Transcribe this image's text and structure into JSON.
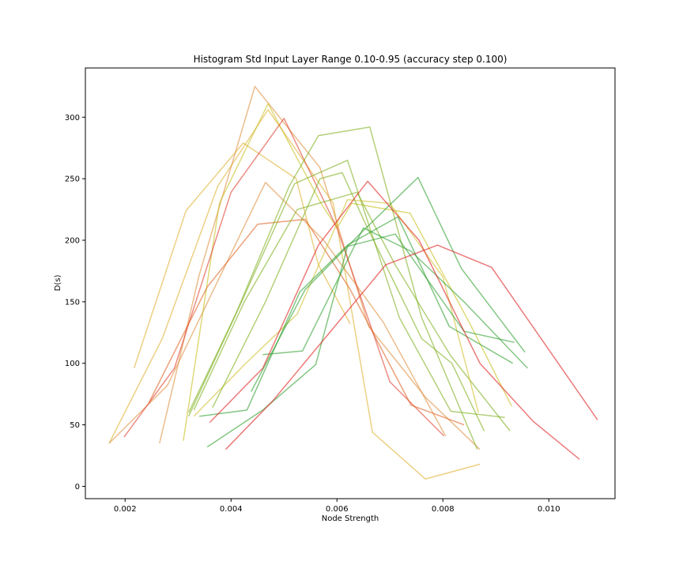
{
  "chart_data": {
    "type": "line",
    "title": "Histogram Std Input Layer Range 0.10-0.95 (accuracy step 0.100)",
    "xlabel": "Node Strength",
    "ylabel": "D(s)",
    "xlim": [
      0.00125,
      0.01125
    ],
    "ylim": [
      -10,
      340
    ],
    "xticks": [
      0.002,
      0.004,
      0.006,
      0.008,
      0.01
    ],
    "xtick_labels": [
      "0.002",
      "0.004",
      "0.006",
      "0.008",
      "0.010"
    ],
    "yticks": [
      0,
      50,
      100,
      150,
      200,
      250,
      300
    ],
    "ytick_labels": [
      "0",
      "50",
      "100",
      "150",
      "200",
      "250",
      "300"
    ],
    "grid": false,
    "line_alpha": 0.6,
    "series": [
      {
        "color": "#e0b030",
        "x": [
          0.00217,
          0.00315,
          0.00423,
          0.00523,
          0.00565,
          0.00625
        ],
        "y": [
          96,
          224,
          279,
          250,
          180,
          132
        ]
      },
      {
        "color": "#e0b030",
        "x": [
          0.0017,
          0.0027,
          0.00375,
          0.0047,
          0.00593,
          0.00667,
          0.00767,
          0.0087
        ],
        "y": [
          35,
          120,
          244,
          306,
          230,
          44,
          6,
          18
        ]
      },
      {
        "color": "#e09040",
        "x": [
          0.0017,
          0.0028,
          0.00365,
          0.00465,
          0.00575,
          0.00688,
          0.00805
        ],
        "y": [
          35,
          82,
          158,
          247,
          200,
          133,
          41
        ]
      },
      {
        "color": "#e09040",
        "x": [
          0.00265,
          0.0034,
          0.00445,
          0.00568,
          0.0066,
          0.00768,
          0.0087
        ],
        "y": [
          35,
          172,
          325,
          259,
          130,
          72,
          30
        ]
      },
      {
        "color": "#c8c020",
        "x": [
          0.0031,
          0.00378,
          0.0047,
          0.0057,
          0.006,
          0.00628,
          0.00738,
          0.0085,
          0.0093
        ],
        "y": [
          37,
          230,
          311,
          230,
          210,
          230,
          222,
          133,
          65
        ]
      },
      {
        "color": "#e04030",
        "x": [
          0.00198,
          0.00293,
          0.004,
          0.005,
          0.006,
          0.007,
          0.00802
        ],
        "y": [
          40,
          96,
          239,
          299,
          210,
          85,
          41
        ]
      },
      {
        "color": "#e06020",
        "x": [
          0.00245,
          0.00355,
          0.0045,
          0.0054,
          0.00625,
          0.0074,
          0.0084
        ],
        "y": [
          68,
          162,
          213,
          217,
          160,
          66,
          50
        ]
      },
      {
        "color": "#80b020",
        "x": [
          0.0032,
          0.00408,
          0.0051,
          0.00565,
          0.00662,
          0.0076,
          0.00865
        ],
        "y": [
          57,
          139,
          244,
          285,
          292,
          137,
          30
        ]
      },
      {
        "color": "#80b020",
        "x": [
          0.0032,
          0.0042,
          0.0052,
          0.0062,
          0.00718,
          0.00815,
          0.00917
        ],
        "y": [
          60,
          150,
          246,
          265,
          137,
          61,
          56
        ]
      },
      {
        "color": "#80b020",
        "x": [
          0.0033,
          0.00425,
          0.00525,
          0.00638,
          0.0071,
          0.00815,
          0.00927
        ],
        "y": [
          62,
          150,
          225,
          239,
          180,
          106,
          45
        ]
      },
      {
        "color": "#d0c030",
        "x": [
          0.0033,
          0.00428,
          0.00525,
          0.0062,
          0.007,
          0.008,
          0.00867
        ],
        "y": [
          57,
          100,
          140,
          233,
          230,
          170,
          60
        ]
      },
      {
        "color": "#80b020",
        "x": [
          0.00365,
          0.00465,
          0.00568,
          0.0061,
          0.00652,
          0.0076,
          0.00817,
          0.00878
        ],
        "y": [
          64,
          150,
          250,
          255,
          215,
          120,
          100,
          45
        ]
      },
      {
        "color": "#30a030",
        "x": [
          0.0034,
          0.0043,
          0.0053,
          0.0062,
          0.00715,
          0.00812,
          0.00932
        ],
        "y": [
          57,
          62,
          158,
          196,
          219,
          130,
          100
        ]
      },
      {
        "color": "#30a030",
        "x": [
          0.00438,
          0.0054,
          0.00643,
          0.00753,
          0.00835,
          0.00955
        ],
        "y": [
          77,
          160,
          205,
          251,
          177,
          109
        ]
      },
      {
        "color": "#30a030",
        "x": [
          0.00355,
          0.0046,
          0.0056,
          0.0062,
          0.0071,
          0.0084,
          0.00935
        ],
        "y": [
          32,
          62,
          99,
          195,
          205,
          126,
          117
        ]
      },
      {
        "color": "#30a030",
        "x": [
          0.0046,
          0.00535,
          0.0065,
          0.0074,
          0.0084,
          0.0096
        ],
        "y": [
          107,
          110,
          210,
          191,
          150,
          96
        ]
      },
      {
        "color": "#e02020",
        "x": [
          0.0036,
          0.0046,
          0.00565,
          0.00658,
          0.00755,
          0.0087,
          0.0097,
          0.01058
        ],
        "y": [
          52,
          96,
          196,
          248,
          200,
          100,
          53,
          22
        ]
      },
      {
        "color": "#e02020",
        "x": [
          0.0039,
          0.0048,
          0.00592,
          0.00692,
          0.0079,
          0.00892,
          0.01092
        ],
        "y": [
          30,
          70,
          128,
          180,
          196,
          178,
          54
        ]
      }
    ]
  }
}
